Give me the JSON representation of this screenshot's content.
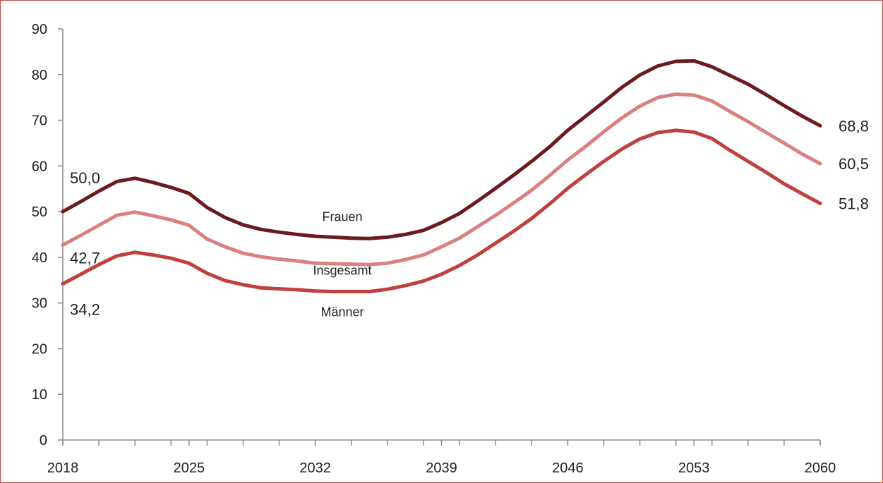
{
  "chart_data": {
    "type": "line",
    "x": [
      2018,
      2019,
      2020,
      2021,
      2022,
      2023,
      2024,
      2025,
      2026,
      2027,
      2028,
      2029,
      2030,
      2031,
      2032,
      2033,
      2034,
      2035,
      2036,
      2037,
      2038,
      2039,
      2040,
      2041,
      2042,
      2043,
      2044,
      2045,
      2046,
      2047,
      2048,
      2049,
      2050,
      2051,
      2052,
      2053,
      2054,
      2055,
      2056,
      2057,
      2058,
      2059,
      2060
    ],
    "xticks": [
      2018,
      2025,
      2032,
      2039,
      2046,
      2053,
      2060
    ],
    "xlim": [
      2018,
      2060
    ],
    "ylim": [
      0,
      90
    ],
    "yticks": [
      0,
      10,
      20,
      30,
      40,
      50,
      60,
      70,
      80,
      90
    ],
    "grid": false,
    "legend": "none",
    "series": [
      {
        "name": "Frauen",
        "color": "#6b1a1d",
        "start_label": "50,0",
        "end_label": "68,8",
        "values": [
          50.0,
          52.2,
          54.5,
          56.6,
          57.3,
          56.4,
          55.3,
          54.0,
          50.9,
          48.7,
          47.1,
          46.1,
          45.5,
          45.0,
          44.6,
          44.4,
          44.2,
          44.1,
          44.4,
          45.0,
          45.9,
          47.6,
          49.6,
          52.3,
          55.1,
          58.0,
          61.0,
          64.2,
          67.8,
          70.9,
          74.0,
          77.2,
          79.9,
          81.9,
          82.9,
          83.0,
          81.7,
          79.8,
          77.9,
          75.6,
          73.2,
          70.9,
          68.8
        ]
      },
      {
        "name": "Insgesamt",
        "color": "#d98080",
        "start_label": "42,7",
        "end_label": "60,5",
        "values": [
          42.7,
          44.8,
          47.0,
          49.2,
          49.9,
          49.1,
          48.2,
          47.0,
          44.0,
          42.3,
          40.9,
          40.1,
          39.6,
          39.2,
          38.7,
          38.6,
          38.5,
          38.4,
          38.7,
          39.5,
          40.5,
          42.3,
          44.2,
          46.7,
          49.2,
          51.9,
          54.7,
          57.9,
          61.3,
          64.3,
          67.5,
          70.5,
          73.1,
          75.0,
          75.7,
          75.5,
          74.2,
          71.9,
          69.7,
          67.3,
          65.0,
          62.6,
          60.5
        ]
      },
      {
        "name": "Männer",
        "color": "#c0403d",
        "start_label": "34,2",
        "end_label": "51,8",
        "values": [
          34.2,
          36.3,
          38.4,
          40.3,
          41.1,
          40.5,
          39.8,
          38.7,
          36.5,
          34.9,
          34.0,
          33.3,
          33.1,
          32.9,
          32.6,
          32.5,
          32.5,
          32.5,
          33.0,
          33.8,
          34.8,
          36.3,
          38.2,
          40.5,
          43.1,
          45.7,
          48.5,
          51.7,
          55.1,
          58.1,
          61.0,
          63.7,
          65.9,
          67.3,
          67.8,
          67.4,
          66.0,
          63.4,
          61.0,
          58.6,
          56.1,
          53.9,
          51.8
        ]
      }
    ]
  }
}
